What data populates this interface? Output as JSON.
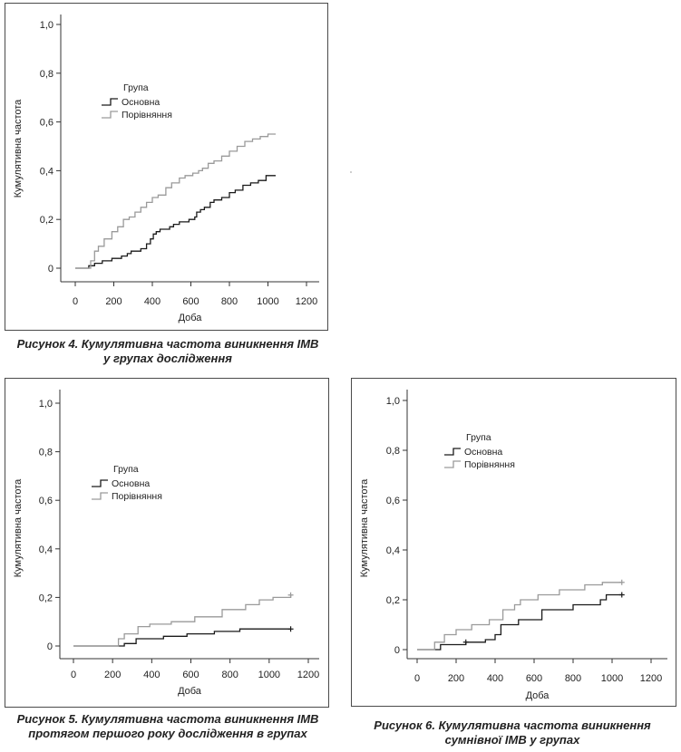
{
  "chart_data": [
    {
      "type": "line",
      "step": true,
      "xlabel": "Доба",
      "ylabel": "Кумулятивна частота",
      "xlim": [
        0,
        1200
      ],
      "ylim": [
        0,
        1.0
      ],
      "xticks": [
        "0",
        "200",
        "400",
        "600",
        "800",
        "1000",
        "1200"
      ],
      "yticks": [
        "0",
        "0,2",
        "0,4",
        "0,6",
        "0,8",
        "1,0"
      ],
      "legend": {
        "title": "Група",
        "placement": "upper-left"
      },
      "series": [
        {
          "name": "Основна",
          "color": "#1a1a1a",
          "x": [
            0,
            70,
            100,
            140,
            190,
            240,
            270,
            290,
            340,
            370,
            390,
            405,
            420,
            440,
            490,
            510,
            540,
            590,
            620,
            630,
            650,
            670,
            700,
            720,
            760,
            800,
            830,
            870,
            910,
            950,
            990,
            1040
          ],
          "y": [
            0,
            0.01,
            0.02,
            0.03,
            0.04,
            0.05,
            0.06,
            0.07,
            0.08,
            0.1,
            0.12,
            0.14,
            0.15,
            0.16,
            0.17,
            0.18,
            0.19,
            0.2,
            0.21,
            0.23,
            0.24,
            0.25,
            0.27,
            0.28,
            0.29,
            0.31,
            0.32,
            0.34,
            0.35,
            0.36,
            0.38,
            0.38
          ]
        },
        {
          "name": "Порівняння",
          "color": "#9a9a9a",
          "x": [
            0,
            80,
            100,
            120,
            150,
            190,
            220,
            250,
            280,
            310,
            340,
            370,
            400,
            430,
            470,
            500,
            540,
            570,
            610,
            640,
            660,
            690,
            720,
            760,
            800,
            840,
            880,
            920,
            960,
            1000,
            1040
          ],
          "y": [
            0,
            0.03,
            0.07,
            0.09,
            0.12,
            0.15,
            0.17,
            0.2,
            0.21,
            0.23,
            0.25,
            0.27,
            0.29,
            0.3,
            0.33,
            0.35,
            0.37,
            0.38,
            0.39,
            0.4,
            0.41,
            0.43,
            0.44,
            0.46,
            0.48,
            0.5,
            0.52,
            0.53,
            0.54,
            0.55,
            0.55
          ]
        }
      ]
    },
    {
      "type": "line",
      "step": true,
      "xlabel": "Доба",
      "ylabel": "Кумулятивна частота",
      "xlim": [
        0,
        1200
      ],
      "ylim": [
        0,
        1.0
      ],
      "xticks": [
        "0",
        "200",
        "400",
        "600",
        "800",
        "1000",
        "1200"
      ],
      "yticks": [
        "0",
        "0,2",
        "0,4",
        "0,6",
        "0,8",
        "1,0"
      ],
      "legend": {
        "title": "Група",
        "placement": "center-left"
      },
      "series": [
        {
          "name": "Основна",
          "color": "#1a1a1a",
          "censored_end": true,
          "x": [
            0,
            260,
            320,
            460,
            580,
            720,
            850,
            1110
          ],
          "y": [
            0,
            0.01,
            0.03,
            0.04,
            0.05,
            0.06,
            0.07,
            0.07
          ]
        },
        {
          "name": "Порівняння",
          "color": "#9a9a9a",
          "censored_end": true,
          "x": [
            0,
            230,
            260,
            330,
            390,
            500,
            620,
            760,
            880,
            950,
            1020,
            1110
          ],
          "y": [
            0,
            0.03,
            0.05,
            0.08,
            0.09,
            0.1,
            0.12,
            0.15,
            0.17,
            0.19,
            0.2,
            0.21
          ]
        }
      ]
    },
    {
      "type": "line",
      "step": true,
      "xlabel": "Доба",
      "ylabel": "Кумулятивна частота",
      "xlim": [
        0,
        1200
      ],
      "ylim": [
        0,
        1.0
      ],
      "xticks": [
        "0",
        "200",
        "400",
        "600",
        "800",
        "1000",
        "1200"
      ],
      "yticks": [
        "0",
        "0,2",
        "0,4",
        "0,6",
        "0,8",
        "1,0"
      ],
      "legend": {
        "title": "Група",
        "placement": "upper-left"
      },
      "series": [
        {
          "name": "Основна",
          "color": "#1a1a1a",
          "censored_end": true,
          "censor_marks": [
            250
          ],
          "x": [
            0,
            120,
            250,
            350,
            400,
            430,
            520,
            640,
            800,
            940,
            970,
            1050
          ],
          "y": [
            0,
            0.02,
            0.03,
            0.04,
            0.06,
            0.1,
            0.12,
            0.16,
            0.18,
            0.2,
            0.22,
            0.22
          ]
        },
        {
          "name": "Порівняння",
          "color": "#9a9a9a",
          "censored_end": true,
          "x": [
            0,
            90,
            140,
            200,
            280,
            370,
            440,
            500,
            530,
            620,
            730,
            860,
            950,
            1050
          ],
          "y": [
            0,
            0.03,
            0.06,
            0.08,
            0.1,
            0.12,
            0.16,
            0.18,
            0.2,
            0.22,
            0.24,
            0.26,
            0.27,
            0.27
          ]
        }
      ]
    }
  ],
  "captions": [
    [
      "Рисунок 4. Кумулятивна частота виникнення ІМВ",
      "у групах дослідження"
    ],
    [
      "Рисунок 5. Кумулятивна частота виникнення ІМВ",
      "протягом першого року дослідження в групах"
    ],
    [
      "Рисунок 6. Кумулятивна частота виникнення",
      "сумнівної ІМВ у групах"
    ]
  ]
}
